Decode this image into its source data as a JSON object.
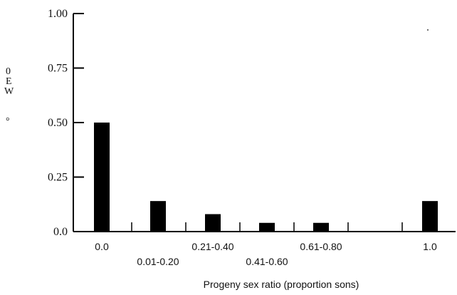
{
  "chart_data": {
    "type": "bar",
    "categories": [
      "0.0",
      "0.01-0.20",
      "0.21-0.40",
      "0.41-0.60",
      "0.61-0.80",
      "1.0"
    ],
    "values": [
      0.5,
      0.14,
      0.08,
      0.04,
      0.04,
      0.14
    ],
    "x_tick_labels": [
      "0.0",
      "0.01-0.20",
      "0.21-0.40",
      "0.41-0.60",
      "0.61-0.80",
      "1.0"
    ],
    "y_tick_labels": [
      "0.0",
      "0.25",
      "0.50",
      "0.75",
      "1.00"
    ],
    "y_ticks": [
      0,
      0.25,
      0.5,
      0.75,
      1.0
    ],
    "ylim": [
      0,
      1.0
    ],
    "ylabel_fragments": [
      "0",
      "E",
      "W",
      "°"
    ],
    "xlabel": "Progeny sex ratio (proportion sons)",
    "title": "",
    "grid": false,
    "legend": "none",
    "bar_color": "#000000"
  }
}
